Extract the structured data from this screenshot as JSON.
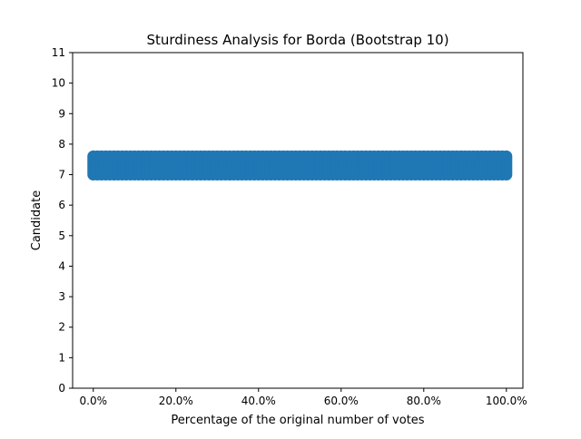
{
  "chart_data": {
    "type": "scatter",
    "title": "Sturdiness Analysis for Borda (Bootstrap 10)",
    "xlabel": "Percentage of the original number of votes",
    "ylabel": "Candidate",
    "xlim": [
      -0.05,
      1.04
    ],
    "ylim": [
      0,
      11
    ],
    "x_ticks": [
      {
        "value": 0.0,
        "label": "0.0%"
      },
      {
        "value": 0.2,
        "label": "20.0%"
      },
      {
        "value": 0.4,
        "label": "40.0%"
      },
      {
        "value": 0.6,
        "label": "60.0%"
      },
      {
        "value": 0.8,
        "label": "80.0%"
      },
      {
        "value": 1.0,
        "label": "100.0%"
      }
    ],
    "y_ticks": [
      {
        "value": 0,
        "label": "0"
      },
      {
        "value": 1,
        "label": "1"
      },
      {
        "value": 2,
        "label": "2"
      },
      {
        "value": 3,
        "label": "3"
      },
      {
        "value": 4,
        "label": "4"
      },
      {
        "value": 5,
        "label": "5"
      },
      {
        "value": 6,
        "label": "6"
      },
      {
        "value": 7,
        "label": "7"
      },
      {
        "value": 8,
        "label": "8"
      },
      {
        "value": 9,
        "label": "9"
      },
      {
        "value": 10,
        "label": "10"
      },
      {
        "value": 11,
        "label": "11"
      }
    ],
    "series": [
      {
        "color": "#1f77b4",
        "x_start": 0.0,
        "x_end": 1.0,
        "x_step": 0.01,
        "y": [
          7.0,
          7.6
        ]
      }
    ],
    "grid": false,
    "legend": "none"
  }
}
